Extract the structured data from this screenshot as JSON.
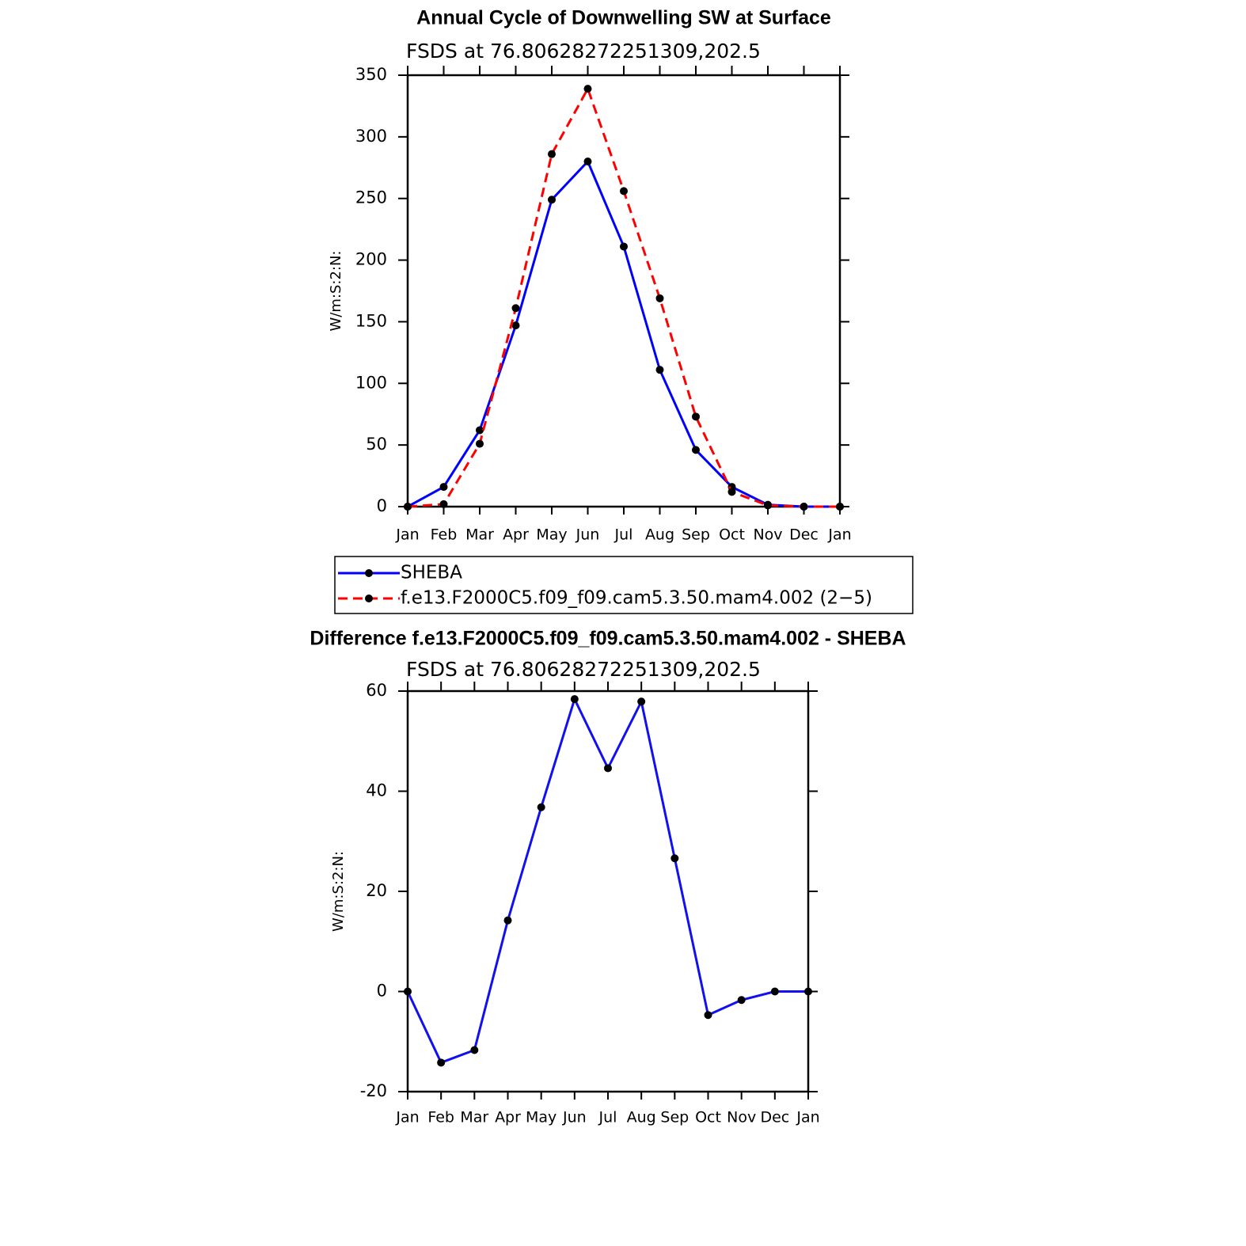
{
  "chart_data": [
    {
      "type": "line",
      "title": "Annual Cycle of Downwelling SW at Surface",
      "subtitle": "FSDS at 76.80628272251309,202.5",
      "y_label": "W/m:S:2:N:",
      "categories": [
        "Jan",
        "Feb",
        "Mar",
        "Apr",
        "May",
        "Jun",
        "Jul",
        "Aug",
        "Sep",
        "Oct",
        "Nov",
        "Dec",
        "Jan"
      ],
      "series": [
        {
          "name": "SHEBA",
          "color": "#0000ff",
          "dashed": false,
          "values": [
            0,
            16,
            62,
            147,
            249,
            280,
            211,
            111,
            46,
            16,
            1.5,
            0,
            0
          ]
        },
        {
          "name": "f.e13.F2000C5.f09_f09.cam5.3.50.mam4.002 (2−5)",
          "color": "#ff0000",
          "dashed": true,
          "values": [
            0,
            2,
            51,
            161,
            286,
            339,
            256,
            169,
            73,
            12,
            1,
            0,
            0
          ]
        }
      ],
      "ylim": [
        0,
        350
      ],
      "yticks": [
        0,
        50,
        100,
        150,
        200,
        250,
        300,
        350
      ],
      "legend": "below"
    },
    {
      "type": "line",
      "title": "Difference f.e13.F2000C5.f09_f09.cam5.3.50.mam4.002 - SHEBA",
      "subtitle": "FSDS at 76.80628272251309,202.5",
      "y_label": "W/m:S:2:N:",
      "categories": [
        "Jan",
        "Feb",
        "Mar",
        "Apr",
        "May",
        "Jun",
        "Jul",
        "Aug",
        "Sep",
        "Oct",
        "Nov",
        "Dec",
        "Jan"
      ],
      "values": [
        0,
        -14.2,
        -11.7,
        14.2,
        36.8,
        58.4,
        44.6,
        57.9,
        26.6,
        -4.7,
        -1.7,
        0,
        0
      ],
      "color": "#1010f0",
      "ylim": [
        -20,
        60
      ],
      "yticks": [
        -20,
        0,
        20,
        40,
        60
      ]
    }
  ]
}
